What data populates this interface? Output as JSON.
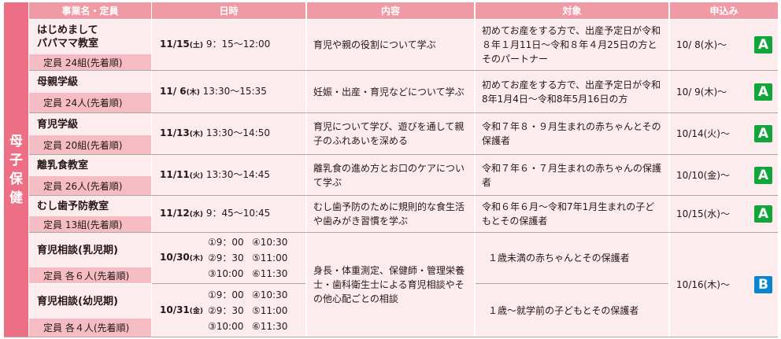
{
  "category": "母子保健",
  "headers": [
    "事業名・定員",
    "日時",
    "内容",
    "対象",
    "申込み"
  ],
  "colors": {
    "header": "#f09aa5",
    "side": "#ec6f86",
    "capacity_bg": "#f5bcc3",
    "cell_bg": "#fdecee",
    "badge_A": "#12a53b",
    "badge_B": "#0a85cf"
  },
  "rows": [
    {
      "name": "はじめまして\nパパママ教室",
      "capacity": "定員 24組(先着順)",
      "date": "11/15",
      "dow": "(土)",
      "time": " 9：15～12:00",
      "content": "育児や親の役割について学ぶ",
      "target": "初めてお産をする方で、出産予定日が令和８年１月11日～令和８年４月25日の方とそのパートナー",
      "apply": "10/ 8(水)～",
      "badge": "A"
    },
    {
      "name": "母親学級",
      "capacity": "定員 24人(先着順)",
      "date": "11/ 6",
      "dow": "(木)",
      "time": " 13:30～15:35",
      "content": "妊娠・出産・育児などについて学ぶ",
      "target": "初めてお産をする方で、出産予定日が令和8年1月4日～令和8年5月16日の方",
      "apply": "10/ 9(木)～",
      "badge": "A"
    },
    {
      "name": "育児学級",
      "capacity": "定員 20組(先着順)",
      "date": "11/13",
      "dow": "(木)",
      "time": " 13:30～14:50",
      "content": "育児について学び、遊びを通して親子のふれあいを深める",
      "target": "令和７年８・９月生まれの赤ちゃんとその保護者",
      "apply": "10/14(火)～",
      "badge": "A"
    },
    {
      "name": "離乳食教室",
      "capacity": "定員 26人(先着順)",
      "date": "11/11",
      "dow": "(火)",
      "time": " 13:30～14:45",
      "content": "離乳食の進め方とお口のケアについて学ぶ",
      "target": "令和７年６・７月生まれの赤ちゃんの保護者",
      "apply": "10/10(金)～",
      "badge": "A"
    },
    {
      "name": "むし歯予防教室",
      "capacity": "定員 13組(先着順)",
      "date": "11/12",
      "dow": "(水)",
      "time": " 9：45～10:45",
      "content": "むし歯予防のために規則的な食生活や歯みがき習慣を学ぶ",
      "target": "令和６年６月～令和7年1月生まれの子どもとその保護者",
      "apply": "10/15(水)～",
      "badge": "A"
    }
  ],
  "consult": {
    "content": "身長・体重測定、保健師・管理栄養士・歯科衛生士による育児相談やその他心配ごとの相談",
    "apply": "10/16(木)～",
    "badge": "B",
    "items": [
      {
        "name": "育児相談(乳児期)",
        "capacity": "定員 各６人(先着順)",
        "date": "10/30",
        "dow": "(木)",
        "times": [
          "①9：00",
          "④10:30",
          "②9：30",
          "⑤11:00",
          "③10:00",
          "⑥11:30"
        ],
        "target": "１歳未満の赤ちゃんとその保護者"
      },
      {
        "name": "育児相談(幼児期)",
        "capacity": "定員 各４人(先着順)",
        "date": "10/31",
        "dow": "(金)",
        "times": [
          "①9：00",
          "④10:30",
          "②9：30",
          "⑤11:00",
          "③10:00",
          "⑥11:30"
        ],
        "target": "１歳～就学前の子どもとその保護者"
      }
    ]
  }
}
